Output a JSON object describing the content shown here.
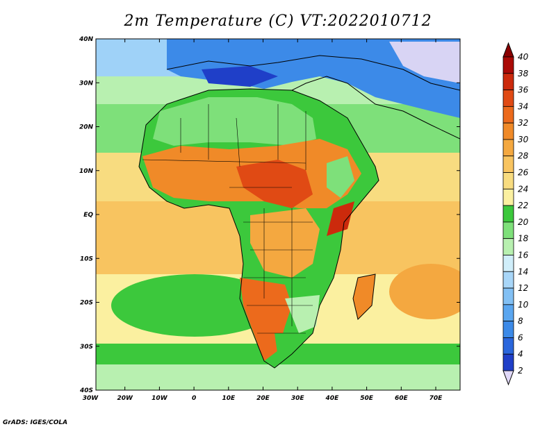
{
  "title": "2m Temperature (C) VT:2022010712",
  "credit": "GrADS: IGES/COLA",
  "lat_labels": [
    "40N",
    "30N",
    "20N",
    "10N",
    "EQ",
    "10S",
    "20S",
    "30S",
    "40S"
  ],
  "lon_labels": [
    "30W",
    "20W",
    "10W",
    "0",
    "10E",
    "20E",
    "30E",
    "40E",
    "50E",
    "60E",
    "70E"
  ],
  "colorbar": {
    "ticks": [
      "2",
      "4",
      "6",
      "8",
      "10",
      "12",
      "14",
      "16",
      "18",
      "20",
      "22",
      "24",
      "26",
      "28",
      "30",
      "32",
      "34",
      "36",
      "38",
      "40"
    ],
    "colors": [
      "#1a1aa0",
      "#1f3fc8",
      "#2a66dc",
      "#3c8ae8",
      "#5aa6f0",
      "#82c0f4",
      "#a8d6f8",
      "#d0eefa",
      "#b8f0b0",
      "#7ee07a",
      "#3cc83c",
      "#fbf0a0",
      "#f8dc80",
      "#f8c460",
      "#f4a840",
      "#f08a28",
      "#ec6a1c",
      "#e04a14",
      "#cc2a0c",
      "#aa0a06"
    ],
    "low_cap": "#e0d8f8",
    "high_cap": "#8a0000"
  },
  "map": {
    "ocean_north": "#9fd2f8",
    "ocean_tropics": "#f8dc80",
    "ocean_south": "#7ee07a",
    "land_sahara": "#3cc83c",
    "land_sahel": "#f08a28",
    "land_hot": "#e04a14",
    "land_south": "#ec6a1c",
    "europe": "#3c8ae8"
  }
}
